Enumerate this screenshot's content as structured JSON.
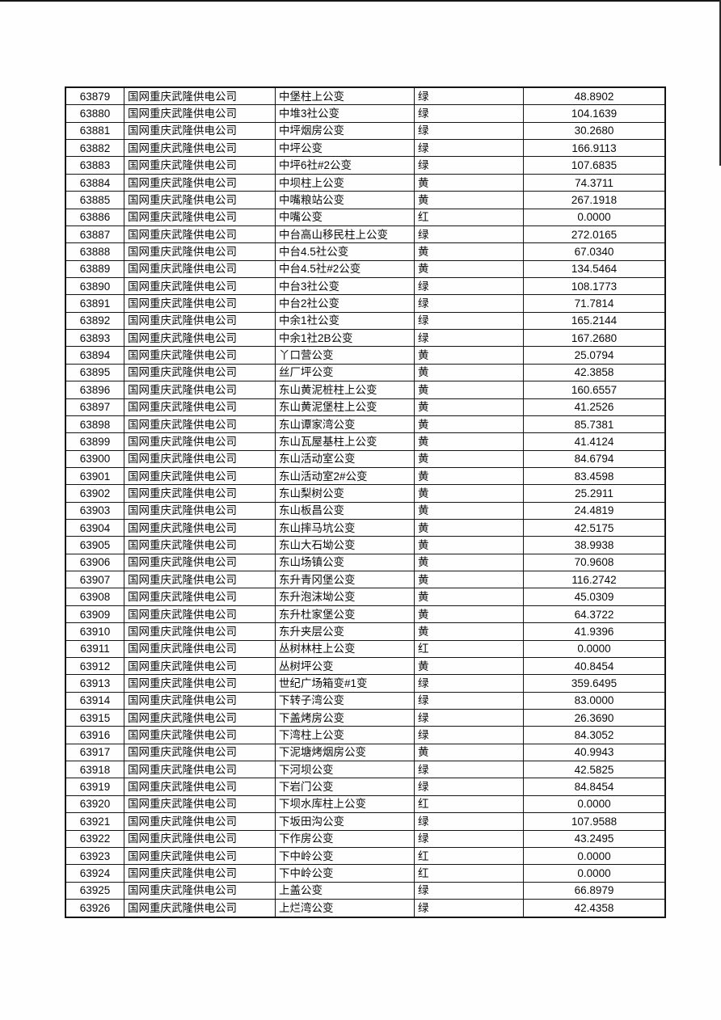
{
  "page": {
    "background_color": "#fefefe",
    "top_edge_color": "#151515",
    "grid_line_color": "#141414"
  },
  "table": {
    "columns": [
      {
        "key": "id",
        "align": "center"
      },
      {
        "key": "company",
        "align": "left"
      },
      {
        "key": "name",
        "align": "left"
      },
      {
        "key": "status",
        "align": "left"
      },
      {
        "key": "value",
        "align": "center"
      }
    ],
    "rows": [
      {
        "id": "63879",
        "company": "国网重庆武隆供电公司",
        "name": "中堡柱上公变",
        "status": "绿",
        "value": "48.8902"
      },
      {
        "id": "63880",
        "company": "国网重庆武隆供电公司",
        "name": "中堆3社公变",
        "status": "绿",
        "value": "104.1639"
      },
      {
        "id": "63881",
        "company": "国网重庆武隆供电公司",
        "name": "中坪烟房公变",
        "status": "绿",
        "value": "30.2680"
      },
      {
        "id": "63882",
        "company": "国网重庆武隆供电公司",
        "name": "中坪公变",
        "status": "绿",
        "value": "166.9113"
      },
      {
        "id": "63883",
        "company": "国网重庆武隆供电公司",
        "name": "中坪6社#2公变",
        "status": "绿",
        "value": "107.6835"
      },
      {
        "id": "63884",
        "company": "国网重庆武隆供电公司",
        "name": "中坝柱上公变",
        "status": "黄",
        "value": "74.3711"
      },
      {
        "id": "63885",
        "company": "国网重庆武隆供电公司",
        "name": "中嘴粮站公变",
        "status": "黄",
        "value": "267.1918"
      },
      {
        "id": "63886",
        "company": "国网重庆武隆供电公司",
        "name": "中嘴公变",
        "status": "红",
        "value": "0.0000"
      },
      {
        "id": "63887",
        "company": "国网重庆武隆供电公司",
        "name": "中台高山移民柱上公变",
        "status": "绿",
        "value": "272.0165"
      },
      {
        "id": "63888",
        "company": "国网重庆武隆供电公司",
        "name": "中台4.5社公变",
        "status": "黄",
        "value": "67.0340"
      },
      {
        "id": "63889",
        "company": "国网重庆武隆供电公司",
        "name": "中台4.5社#2公变",
        "status": "黄",
        "value": "134.5464"
      },
      {
        "id": "63890",
        "company": "国网重庆武隆供电公司",
        "name": "中台3社公变",
        "status": "绿",
        "value": "108.1773"
      },
      {
        "id": "63891",
        "company": "国网重庆武隆供电公司",
        "name": "中台2社公变",
        "status": "绿",
        "value": "71.7814"
      },
      {
        "id": "63892",
        "company": "国网重庆武隆供电公司",
        "name": "中余1社公变",
        "status": "绿",
        "value": "165.2144"
      },
      {
        "id": "63893",
        "company": "国网重庆武隆供电公司",
        "name": "中余1社2B公变",
        "status": "绿",
        "value": "167.2680"
      },
      {
        "id": "63894",
        "company": "国网重庆武隆供电公司",
        "name": "丫口营公变",
        "status": "黄",
        "value": "25.0794"
      },
      {
        "id": "63895",
        "company": "国网重庆武隆供电公司",
        "name": "丝厂坪公变",
        "status": "黄",
        "value": "42.3858"
      },
      {
        "id": "63896",
        "company": "国网重庆武隆供电公司",
        "name": "东山黄泥桩柱上公变",
        "status": "黄",
        "value": "160.6557"
      },
      {
        "id": "63897",
        "company": "国网重庆武隆供电公司",
        "name": "东山黄泥堡柱上公变",
        "status": "黄",
        "value": "41.2526"
      },
      {
        "id": "63898",
        "company": "国网重庆武隆供电公司",
        "name": "东山谭家湾公变",
        "status": "黄",
        "value": "85.7381"
      },
      {
        "id": "63899",
        "company": "国网重庆武隆供电公司",
        "name": "东山瓦屋基柱上公变",
        "status": "黄",
        "value": "41.4124"
      },
      {
        "id": "63900",
        "company": "国网重庆武隆供电公司",
        "name": "东山活动室公变",
        "status": "黄",
        "value": "84.6794"
      },
      {
        "id": "63901",
        "company": "国网重庆武隆供电公司",
        "name": "东山活动室2#公变",
        "status": "黄",
        "value": "83.4598"
      },
      {
        "id": "63902",
        "company": "国网重庆武隆供电公司",
        "name": "东山梨树公变",
        "status": "黄",
        "value": "25.2911"
      },
      {
        "id": "63903",
        "company": "国网重庆武隆供电公司",
        "name": "东山板昌公变",
        "status": "黄",
        "value": "24.4819"
      },
      {
        "id": "63904",
        "company": "国网重庆武隆供电公司",
        "name": "东山摔马坑公变",
        "status": "黄",
        "value": "42.5175"
      },
      {
        "id": "63905",
        "company": "国网重庆武隆供电公司",
        "name": "东山大石坳公变",
        "status": "黄",
        "value": "38.9938"
      },
      {
        "id": "63906",
        "company": "国网重庆武隆供电公司",
        "name": "东山场镇公变",
        "status": "黄",
        "value": "70.9608"
      },
      {
        "id": "63907",
        "company": "国网重庆武隆供电公司",
        "name": "东升青冈堡公变",
        "status": "黄",
        "value": "116.2742"
      },
      {
        "id": "63908",
        "company": "国网重庆武隆供电公司",
        "name": "东升泡沫坳公变",
        "status": "黄",
        "value": "45.0309"
      },
      {
        "id": "63909",
        "company": "国网重庆武隆供电公司",
        "name": "东升杜家堡公变",
        "status": "黄",
        "value": "64.3722"
      },
      {
        "id": "63910",
        "company": "国网重庆武隆供电公司",
        "name": "东升夹层公变",
        "status": "黄",
        "value": "41.9396"
      },
      {
        "id": "63911",
        "company": "国网重庆武隆供电公司",
        "name": "丛树林柱上公变",
        "status": "红",
        "value": "0.0000"
      },
      {
        "id": "63912",
        "company": "国网重庆武隆供电公司",
        "name": "丛树坪公变",
        "status": "黄",
        "value": "40.8454"
      },
      {
        "id": "63913",
        "company": "国网重庆武隆供电公司",
        "name": "世纪广场箱变#1变",
        "status": "绿",
        "value": "359.6495"
      },
      {
        "id": "63914",
        "company": "国网重庆武隆供电公司",
        "name": "下转子湾公变",
        "status": "绿",
        "value": "83.0000"
      },
      {
        "id": "63915",
        "company": "国网重庆武隆供电公司",
        "name": "下盖烤房公变",
        "status": "绿",
        "value": "26.3690"
      },
      {
        "id": "63916",
        "company": "国网重庆武隆供电公司",
        "name": "下湾柱上公变",
        "status": "绿",
        "value": "84.3052"
      },
      {
        "id": "63917",
        "company": "国网重庆武隆供电公司",
        "name": "下泥塘烤烟房公变",
        "status": "黄",
        "value": "40.9943"
      },
      {
        "id": "63918",
        "company": "国网重庆武隆供电公司",
        "name": "下河坝公变",
        "status": "绿",
        "value": "42.5825"
      },
      {
        "id": "63919",
        "company": "国网重庆武隆供电公司",
        "name": "下岩门公变",
        "status": "绿",
        "value": "84.8454"
      },
      {
        "id": "63920",
        "company": "国网重庆武隆供电公司",
        "name": "下坝水库柱上公变",
        "status": "红",
        "value": "0.0000"
      },
      {
        "id": "63921",
        "company": "国网重庆武隆供电公司",
        "name": "下坂田沟公变",
        "status": "绿",
        "value": "107.9588"
      },
      {
        "id": "63922",
        "company": "国网重庆武隆供电公司",
        "name": "下作房公变",
        "status": "绿",
        "value": "43.2495"
      },
      {
        "id": "63923",
        "company": "国网重庆武隆供电公司",
        "name": "下中岭公变",
        "status": "红",
        "value": "0.0000"
      },
      {
        "id": "63924",
        "company": "国网重庆武隆供电公司",
        "name": "下中岭公变",
        "status": "红",
        "value": "0.0000"
      },
      {
        "id": "63925",
        "company": "国网重庆武隆供电公司",
        "name": "上盖公变",
        "status": "绿",
        "value": "66.8979"
      },
      {
        "id": "63926",
        "company": "国网重庆武隆供电公司",
        "name": "上烂湾公变",
        "status": "绿",
        "value": "42.4358"
      }
    ]
  }
}
